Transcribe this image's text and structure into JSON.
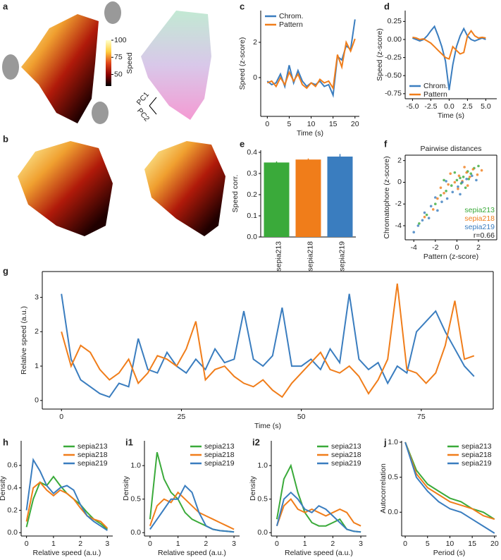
{
  "chart_data": [
    {
      "type": "colorbar",
      "panel": "a",
      "ylabel": "Speed",
      "colors": [
        "#000000",
        "#8b0000",
        "#e0451a",
        "#ffcf40",
        "#ffffcc"
      ],
      "ylim": [
        33,
        100
      ],
      "yticks": [
        50,
        75,
        100
      ],
      "annotations": [
        "PC1",
        "PC2"
      ]
    },
    {
      "type": "image",
      "panel": "b"
    },
    {
      "type": "line",
      "panel": "c",
      "xlabel": "Time (s)",
      "ylabel": "Speed (z-score)",
      "legend": "upper left",
      "x": [
        0,
        1,
        2,
        3,
        4,
        5,
        6,
        7,
        8,
        9,
        10,
        11,
        12,
        13,
        14,
        15,
        16,
        17,
        18,
        19,
        20
      ],
      "series": [
        {
          "name": "Chrom.",
          "color": "#3a7dbf",
          "values": [
            -0.2,
            -0.4,
            -0.3,
            0.2,
            -0.5,
            0.7,
            -0.3,
            0.4,
            -0.2,
            -0.5,
            -0.3,
            -0.4,
            -0.2,
            -0.5,
            -0.4,
            -1.0,
            1.2,
            1.0,
            1.8,
            1.6,
            3.3
          ]
        },
        {
          "name": "Pattern",
          "color": "#f07d1a",
          "values": [
            -0.3,
            -0.2,
            -0.5,
            0.0,
            -0.4,
            0.3,
            -0.2,
            0.2,
            -0.4,
            -0.6,
            -0.3,
            -0.5,
            -0.1,
            -0.3,
            -0.2,
            -0.6,
            1.3,
            0.6,
            2.0,
            1.5,
            2.2
          ]
        }
      ],
      "xlim": [
        -1.5,
        21
      ],
      "xticks": [
        0,
        5,
        10,
        15,
        20
      ],
      "ylim": [
        -2.2,
        3.8
      ],
      "yticks": [
        0,
        2
      ]
    },
    {
      "type": "line",
      "panel": "d",
      "xlabel": "Time (s)",
      "ylabel": "Speed (z-score)",
      "legend": "lower left",
      "x": [
        -5,
        -4.5,
        -4,
        -3.5,
        -3,
        -2.5,
        -2,
        -1.5,
        -1,
        -0.5,
        0,
        0.5,
        1,
        1.5,
        2,
        2.5,
        3,
        3.5,
        4,
        4.5,
        5
      ],
      "series": [
        {
          "name": "Chrom.",
          "color": "#3a7dbf",
          "values": [
            0.02,
            0.0,
            -0.02,
            0.0,
            0.05,
            0.12,
            0.18,
            0.05,
            -0.1,
            -0.3,
            -0.7,
            -0.35,
            -0.1,
            0.05,
            0.15,
            0.05,
            0.0,
            -0.02,
            0.0,
            0.02,
            0.0
          ]
        },
        {
          "name": "Pattern",
          "color": "#f07d1a",
          "values": [
            0.03,
            0.02,
            0.0,
            0.01,
            -0.02,
            -0.05,
            -0.1,
            -0.15,
            -0.2,
            -0.25,
            -0.27,
            -0.1,
            -0.15,
            -0.2,
            -0.18,
            0.05,
            0.12,
            0.05,
            0.02,
            0.03,
            0.02
          ]
        }
      ],
      "xlim": [
        -6,
        6.5
      ],
      "xticks": [
        {
          "value": -5,
          "label": "-5.0"
        },
        {
          "value": -2.5,
          "label": "-2.5"
        },
        {
          "value": 0,
          "label": "0.0"
        },
        {
          "value": 2.5,
          "label": "2.5"
        },
        {
          "value": 5,
          "label": "5.0"
        }
      ],
      "ylim": [
        -0.82,
        0.4
      ],
      "yticks": [
        {
          "value": -0.75,
          "label": "-0.75"
        },
        {
          "value": -0.5,
          "label": "-0.50"
        },
        {
          "value": -0.25,
          "label": "-0.25"
        },
        {
          "value": 0,
          "label": "0.00"
        },
        {
          "value": 0.25,
          "label": "0.25"
        }
      ]
    },
    {
      "type": "bar",
      "panel": "e",
      "ylabel": "Speed corr.",
      "categories": [
        "sepia213",
        "sepia218",
        "sepia219"
      ],
      "values": [
        0.352,
        0.366,
        0.38
      ],
      "errors": [
        0.005,
        0.005,
        0.012
      ],
      "colors": [
        "#3aaa3a",
        "#f07d1a",
        "#3a7dbf"
      ],
      "ylim": [
        0,
        0.41
      ],
      "yticks": [
        {
          "value": 0,
          "label": "0.0"
        },
        0.1,
        0.2,
        0.3,
        0.4
      ]
    },
    {
      "type": "scatter",
      "panel": "f",
      "title": "Pairwise distances",
      "xlabel": "Pattern (z-score)",
      "ylabel": "Chromatophore (z-score)",
      "legend": "lower right",
      "annotations": [
        "r=0.66"
      ],
      "series": [
        {
          "name": "sepia213",
          "color": "#3aaa3a",
          "x": [
            -3.5,
            -2.8,
            -2,
            -1.5,
            -1,
            -0.5,
            0,
            0.3,
            0.6,
            1,
            1.3,
            1.6,
            2,
            -1.2,
            0.8,
            -0.2,
            0.4,
            1.1
          ],
          "y": [
            -3.8,
            -3,
            -2,
            -1.2,
            -0.8,
            -0.3,
            0.2,
            0.4,
            0.5,
            1.0,
            0.8,
            1.3,
            1.5,
            0.2,
            -0.5,
            0.9,
            -0.1,
            0.3
          ]
        },
        {
          "name": "sepia218",
          "color": "#f07d1a",
          "x": [
            -3,
            -2.2,
            -1.8,
            -1.2,
            -0.8,
            -0.2,
            0.2,
            0.5,
            0.9,
            1.2,
            1.5,
            1.9,
            2.3,
            -0.6,
            1.0,
            0.1,
            -1.5,
            0.7
          ],
          "y": [
            -3.2,
            -2.5,
            -1.5,
            -1.0,
            -0.2,
            0.0,
            0.6,
            0.1,
            0.9,
            0.5,
            1.2,
            0.7,
            1.1,
            0.8,
            -0.3,
            -0.6,
            -0.5,
            1.4
          ]
        },
        {
          "name": "sepia219",
          "color": "#3a7dbf",
          "x": [
            -4,
            -3.6,
            -3.2,
            -2.6,
            -2.4,
            -1.8,
            -1.4,
            -0.9,
            -0.4,
            0.1,
            0.5,
            0.9,
            1.4,
            -2.0,
            -1.0,
            0.3,
            1.8,
            -3.0
          ],
          "y": [
            -4.6,
            -4.0,
            -3.5,
            -3.3,
            -2.2,
            -2.6,
            -1.8,
            -1.5,
            -0.9,
            -0.4,
            0.0,
            0.3,
            0.6,
            -1.4,
            0.1,
            -1.1,
            0.2,
            -2.8
          ]
        }
      ],
      "xlim": [
        -4.8,
        3.7
      ],
      "xticks": [
        -4,
        -2,
        0,
        2
      ],
      "ylim": [
        -5.3,
        2.5
      ],
      "yticks": [
        -4,
        -2,
        0,
        2
      ]
    },
    {
      "type": "line",
      "panel": "g",
      "xlabel": "Time (s)",
      "ylabel": "Relative speed (a.u.)",
      "x": [
        0,
        2,
        4,
        6,
        8,
        10,
        12,
        14,
        16,
        18,
        20,
        22,
        24,
        26,
        28,
        30,
        32,
        34,
        36,
        38,
        40,
        42,
        44,
        46,
        48,
        50,
        52,
        54,
        56,
        58,
        60,
        62,
        64,
        66,
        68,
        70,
        72,
        74,
        76,
        78,
        80,
        82,
        84,
        86
      ],
      "series": [
        {
          "color": "#3a7dbf",
          "values": [
            3.1,
            1.2,
            0.6,
            0.4,
            0.2,
            0.1,
            0.5,
            0.4,
            1.8,
            0.9,
            0.8,
            1.4,
            1.0,
            0.8,
            1.2,
            0.9,
            1.5,
            1.1,
            1.2,
            2.6,
            1.2,
            1.0,
            1.3,
            2.7,
            1.0,
            1.0,
            1.2,
            0.9,
            1.5,
            1.1,
            3.1,
            1.2,
            0.9,
            1.1,
            0.5,
            1.0,
            0.8,
            2.0,
            2.3,
            2.6,
            2.0,
            1.5,
            1.0,
            0.7
          ]
        },
        {
          "color": "#f07d1a",
          "values": [
            2.0,
            1.0,
            1.6,
            1.4,
            0.9,
            0.6,
            0.8,
            1.2,
            0.5,
            0.8,
            1.3,
            1.2,
            1.0,
            1.5,
            2.3,
            0.6,
            0.9,
            1.0,
            0.7,
            0.5,
            0.4,
            0.6,
            0.3,
            0.1,
            0.5,
            0.8,
            1.1,
            1.4,
            0.9,
            0.8,
            1.0,
            0.7,
            0.2,
            0.6,
            1.2,
            3.4,
            0.9,
            0.8,
            0.5,
            0.8,
            1.6,
            2.9,
            1.2,
            1.3
          ]
        }
      ],
      "xlim": [
        -4,
        90
      ],
      "xticks": [
        0,
        25,
        50,
        75
      ],
      "ylim": [
        -0.25,
        3.75
      ],
      "yticks": [
        0,
        1,
        2,
        3
      ]
    },
    {
      "type": "line",
      "panel": "h",
      "xlabel": "Relative speed (a.u.)",
      "ylabel": "Density",
      "legend": "upper right",
      "x": [
        0,
        0.25,
        0.5,
        0.75,
        1,
        1.25,
        1.5,
        1.75,
        2,
        2.25,
        2.5,
        2.75,
        3
      ],
      "series": [
        {
          "name": "sepia213",
          "color": "#3aaa3a",
          "values": [
            0.05,
            0.3,
            0.45,
            0.42,
            0.5,
            0.42,
            0.35,
            0.3,
            0.25,
            0.18,
            0.12,
            0.08,
            0.03
          ]
        },
        {
          "name": "sepia218",
          "color": "#f07d1a",
          "values": [
            0.1,
            0.4,
            0.45,
            0.38,
            0.33,
            0.38,
            0.35,
            0.3,
            0.22,
            0.15,
            0.12,
            0.1,
            0.04
          ]
        },
        {
          "name": "sepia219",
          "color": "#3a7dbf",
          "values": [
            0.2,
            0.65,
            0.55,
            0.42,
            0.35,
            0.4,
            0.42,
            0.38,
            0.25,
            0.15,
            0.1,
            0.06,
            0.02
          ]
        }
      ],
      "xlim": [
        -0.2,
        3.2
      ],
      "xticks": [
        0,
        1,
        2,
        3
      ],
      "ylim": [
        -0.03,
        0.82
      ],
      "yticks": [
        {
          "value": 0,
          "label": "0.0"
        },
        0.2,
        0.4,
        0.6
      ]
    },
    {
      "type": "line",
      "panel": "i1",
      "xlabel": "Relative speed (a.u.)",
      "ylabel": "Density",
      "legend": "upper right",
      "x": [
        0,
        0.25,
        0.5,
        0.75,
        1,
        1.25,
        1.5,
        1.75,
        2,
        2.25,
        2.5,
        2.75,
        3
      ],
      "series": [
        {
          "name": "sepia213",
          "color": "#3aaa3a",
          "values": [
            0.2,
            1.2,
            0.8,
            0.6,
            0.5,
            0.3,
            0.2,
            0.15,
            0.1,
            0.05,
            0.03,
            0.02,
            0.01
          ]
        },
        {
          "name": "sepia218",
          "color": "#f07d1a",
          "values": [
            0.1,
            0.4,
            0.5,
            0.45,
            0.6,
            0.5,
            0.4,
            0.3,
            0.25,
            0.2,
            0.15,
            0.1,
            0.05
          ]
        },
        {
          "name": "sepia219",
          "color": "#3a7dbf",
          "values": [
            0.05,
            0.2,
            0.35,
            0.5,
            0.5,
            0.7,
            0.6,
            0.3,
            0.1,
            0.05,
            0.03,
            0.02,
            0.01
          ]
        }
      ],
      "xlim": [
        -0.2,
        3.2
      ],
      "xticks": [
        0,
        1,
        2,
        3
      ],
      "ylim": [
        -0.05,
        1.37
      ],
      "yticks": [
        {
          "value": 0,
          "label": "0.0"
        },
        0.5,
        {
          "value": 1,
          "label": "1.0"
        }
      ]
    },
    {
      "type": "line",
      "panel": "i2",
      "xlabel": "Relative speed (a.u.)",
      "ylabel": "Density",
      "legend": "upper right",
      "x": [
        0,
        0.25,
        0.5,
        0.75,
        1,
        1.25,
        1.5,
        1.75,
        2,
        2.25,
        2.5,
        2.75,
        3
      ],
      "series": [
        {
          "name": "sepia213",
          "color": "#3aaa3a",
          "values": [
            0.2,
            0.8,
            1.0,
            0.6,
            0.3,
            0.15,
            0.1,
            0.1,
            0.15,
            0.2,
            0.05,
            0.02,
            0.01
          ]
        },
        {
          "name": "sepia218",
          "color": "#f07d1a",
          "values": [
            0.1,
            0.4,
            0.5,
            0.35,
            0.3,
            0.35,
            0.3,
            0.25,
            0.3,
            0.35,
            0.3,
            0.15,
            0.1
          ]
        },
        {
          "name": "sepia219",
          "color": "#3a7dbf",
          "values": [
            0.1,
            0.5,
            0.6,
            0.5,
            0.35,
            0.3,
            0.4,
            0.35,
            0.25,
            0.15,
            0.05,
            0.02,
            0.01
          ]
        }
      ],
      "xlim": [
        -0.2,
        3.2
      ],
      "xticks": [
        0,
        1,
        2,
        3
      ],
      "ylim": [
        -0.05,
        1.37
      ],
      "yticks": [
        {
          "value": 0,
          "label": "0.0"
        },
        0.5,
        {
          "value": 1,
          "label": "1.0"
        }
      ]
    },
    {
      "type": "line",
      "panel": "j",
      "xlabel": "Period (s)",
      "ylabel": "Autocorrelation",
      "legend": "upper right",
      "x": [
        0,
        2.5,
        5,
        7.5,
        10,
        12.5,
        15,
        17.5,
        20
      ],
      "series": [
        {
          "name": "sepia213",
          "color": "#3aaa3a",
          "values": [
            1.0,
            0.6,
            0.4,
            0.3,
            0.2,
            0.15,
            0.05,
            0.0,
            -0.1
          ]
        },
        {
          "name": "sepia218",
          "color": "#f07d1a",
          "values": [
            1.0,
            0.55,
            0.35,
            0.25,
            0.15,
            0.1,
            0.05,
            -0.05,
            -0.1
          ]
        },
        {
          "name": "sepia219",
          "color": "#3a7dbf",
          "values": [
            1.0,
            0.5,
            0.3,
            0.15,
            0.05,
            0.0,
            -0.1,
            -0.2,
            -0.3
          ]
        }
      ],
      "xlim": [
        -0.8,
        20.5
      ],
      "xticks": [
        0,
        5,
        10,
        15,
        20
      ],
      "ylim": [
        -0.34,
        1.02
      ],
      "yticks": [
        {
          "value": 0,
          "label": "0.0"
        },
        0.5,
        {
          "value": 1,
          "label": "1.0"
        }
      ]
    }
  ]
}
